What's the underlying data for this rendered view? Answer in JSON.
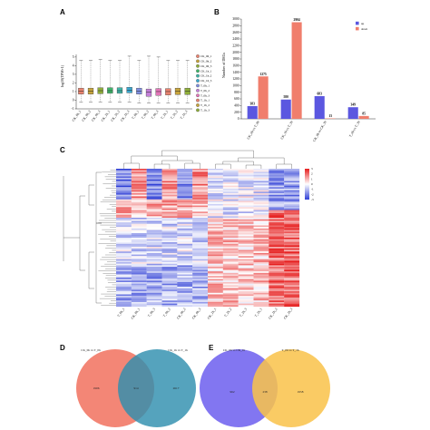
{
  "panel_labels": [
    "A",
    "B",
    "C",
    "D",
    "E"
  ],
  "chart_data": [
    {
      "panel": "A",
      "type": "box",
      "ylabel": "log10(TPM+1)",
      "yticks": [
        -1,
        0,
        1,
        2,
        3,
        4,
        5
      ],
      "ylim": [
        -1,
        5.3
      ],
      "categories": [
        "CK_0h_1",
        "CK_0h_2",
        "CK_0h_3",
        "CK_1h_1",
        "CK_1h_2",
        "CK_1h_3",
        "T_0h_1",
        "T_0h_2",
        "T_0h_3",
        "T_1h_1",
        "T_1h_2",
        "T_1h_3"
      ],
      "colors": [
        "#e8836f",
        "#c7a43c",
        "#8fae3a",
        "#3fb46a",
        "#3fb5a8",
        "#3aa7cf",
        "#7f8fe0",
        "#c47fd9",
        "#e276b8",
        "#e8836f",
        "#c7a43c",
        "#8fae3a"
      ],
      "boxes": [
        {
          "min": -0.2,
          "q1": 0.7,
          "median": 1.05,
          "q3": 1.4,
          "max": 4.6
        },
        {
          "min": -0.2,
          "q1": 0.7,
          "median": 1.05,
          "q3": 1.4,
          "max": 4.6
        },
        {
          "min": -0.2,
          "q1": 0.75,
          "median": 1.1,
          "q3": 1.45,
          "max": 4.7
        },
        {
          "min": -0.2,
          "q1": 0.8,
          "median": 1.1,
          "q3": 1.45,
          "max": 4.6
        },
        {
          "min": -0.2,
          "q1": 0.8,
          "median": 1.1,
          "q3": 1.45,
          "max": 4.6
        },
        {
          "min": -0.2,
          "q1": 0.85,
          "median": 1.15,
          "q3": 1.5,
          "max": 5.1
        },
        {
          "min": -0.3,
          "q1": 0.7,
          "median": 1.05,
          "q3": 1.4,
          "max": 4.6
        },
        {
          "min": -0.3,
          "q1": 0.45,
          "median": 0.95,
          "q3": 1.3,
          "max": 5.1
        },
        {
          "min": -0.3,
          "q1": 0.55,
          "median": 1.0,
          "q3": 1.35,
          "max": 5.0
        },
        {
          "min": -0.3,
          "q1": 0.6,
          "median": 1.0,
          "q3": 1.35,
          "max": 4.6
        },
        {
          "min": -0.3,
          "q1": 0.65,
          "median": 1.05,
          "q3": 1.4,
          "max": 4.6
        },
        {
          "min": -0.3,
          "q1": 0.65,
          "median": 1.05,
          "q3": 1.4,
          "max": 4.6
        }
      ],
      "legend": [
        "CK_0h_1",
        "CK_0h_2",
        "CK_0h_3",
        "CK_1h_1",
        "CK_1h_2",
        "CK_1h_3",
        "T_0h_1",
        "T_0h_2",
        "T_0h_3",
        "T_1h_1",
        "T_1h_2",
        "T_1h_3"
      ]
    },
    {
      "panel": "B",
      "type": "bar",
      "ylabel": "Number of DEGs",
      "ylim": [
        0,
        3000
      ],
      "yticks": [
        0,
        200,
        400,
        600,
        800,
        1000,
        1200,
        1400,
        1600,
        1800,
        2000,
        2200,
        2400,
        2600,
        2800,
        3000
      ],
      "categories": [
        "CK_0h vs T_0h",
        "CK_1h vs T_1h",
        "CK_0h vs CK_1h",
        "T_0h vs T_1h"
      ],
      "series": [
        {
          "name": "up",
          "color": "#5b57e0",
          "values": [
            383,
            580,
            683,
            349
          ]
        },
        {
          "name": "down",
          "color": "#f07e6c",
          "values": [
            1275,
            2904,
            13,
            85
          ]
        }
      ],
      "legend": [
        "up",
        "down"
      ],
      "legend_position": "top-right"
    },
    {
      "panel": "C",
      "type": "heatmap",
      "columns": [
        "T_0h_1",
        "CK_0h_1",
        "T_0h_3",
        "T_0h_2",
        "CK_0h_2",
        "CK_0h_3",
        "CK_1h_1",
        "T_1h_2",
        "T_1h_3",
        "T_1h_1",
        "CK_1h_2",
        "CK_1h_3"
      ],
      "color_scale": [
        "#2f3fd6",
        "#ffffff",
        "#e61e1e"
      ],
      "scale_ticks": [
        3,
        2,
        1,
        0,
        -1,
        -2,
        -3
      ]
    },
    {
      "panel": "D",
      "type": "venn",
      "sets": [
        {
          "name": "CK_0h vs T_0h",
          "only": 1906,
          "color": "#f27c6a"
        },
        {
          "name": "CK_1h vs T_1h",
          "only": 2617,
          "color": "#2f8fae"
        }
      ],
      "overlap": 914
    },
    {
      "panel": "E",
      "type": "venn",
      "sets": [
        {
          "name": "CK_0h vs CK_1h",
          "only": 962,
          "color": "#7b6ff0"
        },
        {
          "name": "T_0h vs T_1h",
          "only": 1958,
          "color": "#f9c34a"
        }
      ],
      "overlap": 238
    }
  ]
}
